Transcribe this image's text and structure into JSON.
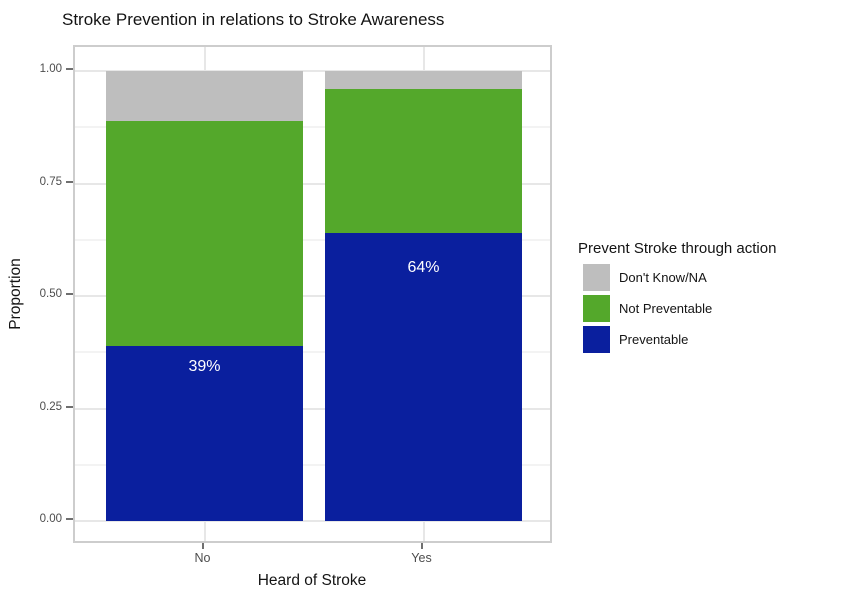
{
  "title": "Stroke Prevention in relations to Stroke Awareness",
  "x_axis_title": "Heard of Stroke",
  "y_axis_title": "Proportion",
  "legend_title": "Prevent Stroke through action",
  "chart_data": {
    "type": "bar",
    "stacked": true,
    "title": "Stroke Prevention in relations to Stroke Awareness",
    "xlabel": "Heard of Stroke",
    "ylabel": "Proportion",
    "categories": [
      "No",
      "Yes"
    ],
    "series": [
      {
        "name": "Don't Know/NA",
        "color": "#bebebe",
        "values": [
          0.11,
          0.04
        ]
      },
      {
        "name": "Not Preventable",
        "color": "#54a82b",
        "values": [
          0.5,
          0.32
        ]
      },
      {
        "name": "Preventable",
        "color": "#0a1f9e",
        "values": [
          0.39,
          0.64
        ],
        "labels": [
          "39%",
          "64%"
        ]
      }
    ],
    "ylim": [
      0,
      1
    ],
    "yticks": [
      {
        "label": "0.00",
        "value": 0.0
      },
      {
        "label": "0.25",
        "value": 0.25
      },
      {
        "label": "0.50",
        "value": 0.5
      },
      {
        "label": "0.75",
        "value": 0.75
      },
      {
        "label": "1.00",
        "value": 1.0
      }
    ],
    "minor_gridlines": [
      0.125,
      0.375,
      0.625,
      0.875
    ],
    "legend": {
      "title": "Prevent Stroke through action",
      "position": "right"
    },
    "grid": true
  }
}
